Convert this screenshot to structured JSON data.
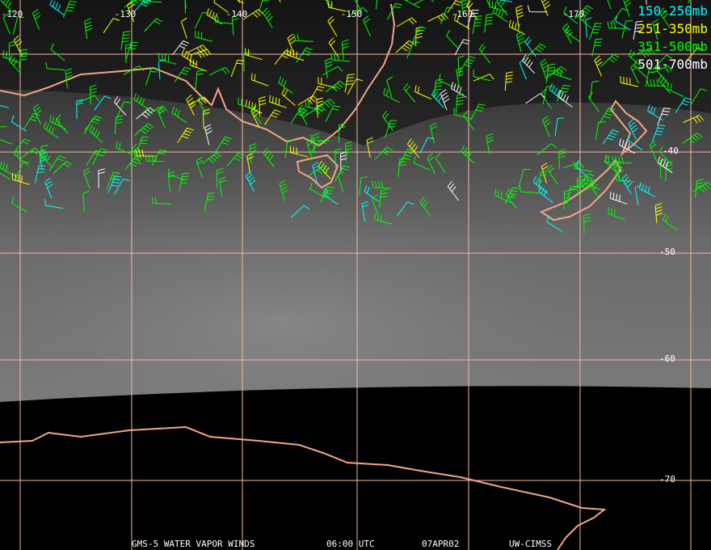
{
  "longitude_labels": [
    "-120",
    "-130",
    "-140",
    "-150",
    "-160",
    "-170"
  ],
  "latitude_labels": [
    "-40",
    "-50",
    "-60",
    "-70"
  ],
  "legend": [
    {
      "label": "150-250mb",
      "color": "#00ffff"
    },
    {
      "label": "251-350mb",
      "color": "#ffff00"
    },
    {
      "label": "351-500mb",
      "color": "#00ff00"
    },
    {
      "label": "501-700mb",
      "color": "#ffffff"
    }
  ],
  "footer": {
    "product": "GMS-5 WATER VAPOR WINDS",
    "time": "06:00 UTC",
    "date": "07APR02",
    "source": "UW-CIMSS"
  }
}
